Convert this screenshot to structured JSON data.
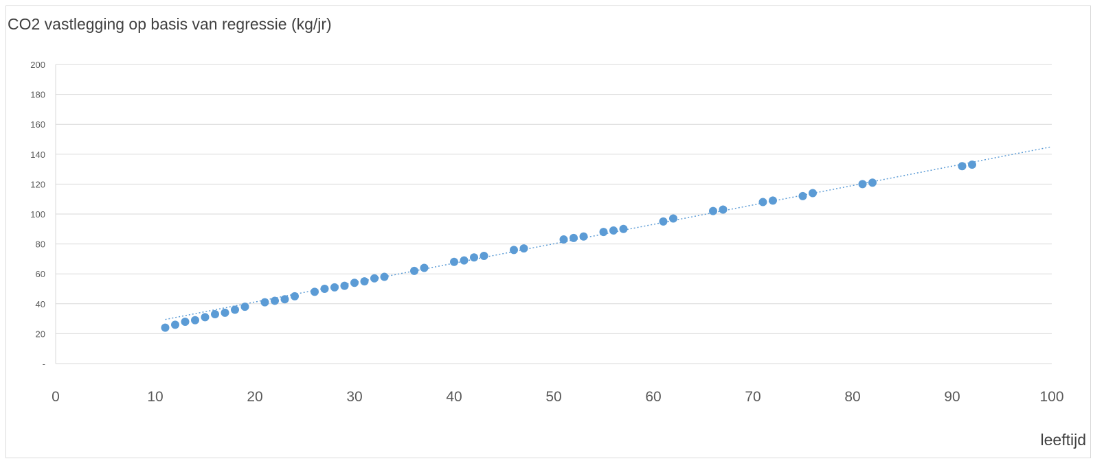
{
  "chart_data": {
    "type": "scatter",
    "title": "CO2 vastlegging op basis van regressie (kg/jr)",
    "xlabel": "leeftijd",
    "ylabel": "",
    "xlim": [
      0,
      100
    ],
    "ylim": [
      0,
      200
    ],
    "x_ticks": [
      "0",
      "10",
      "20",
      "30",
      "40",
      "50",
      "60",
      "70",
      "80",
      "90",
      "100"
    ],
    "y_ticks": [
      "-",
      "20",
      "40",
      "60",
      "80",
      "100",
      "120",
      "140",
      "160",
      "180",
      "200"
    ],
    "grid": true,
    "colors": {
      "points": "#5b9bd5",
      "trendline": "#5b9bd5",
      "grid": "#d9d9d9",
      "axis_text": "#595959"
    },
    "series": [
      {
        "x": [
          11,
          12,
          13,
          14,
          15,
          16,
          17,
          18,
          19,
          21,
          22,
          23,
          24,
          26,
          27,
          28,
          29,
          30,
          31,
          32,
          33,
          36,
          37,
          40,
          41,
          42,
          43,
          46,
          47,
          51,
          52,
          53,
          55,
          56,
          57,
          61,
          62,
          66,
          67,
          71,
          72,
          75,
          76,
          81,
          82,
          91,
          92
        ],
        "y": [
          24,
          26,
          28,
          29,
          31,
          33,
          34,
          36,
          38,
          41,
          42,
          43,
          45,
          48,
          50,
          51,
          52,
          54,
          55,
          57,
          58,
          62,
          64,
          68,
          69,
          71,
          72,
          76,
          77,
          83,
          84,
          85,
          88,
          89,
          90,
          95,
          97,
          102,
          103,
          108,
          109,
          112,
          114,
          120,
          121,
          132,
          133
        ]
      }
    ],
    "trendline": {
      "style": "dotted",
      "x": [
        11,
        100
      ],
      "y": [
        29.5,
        145
      ]
    }
  }
}
